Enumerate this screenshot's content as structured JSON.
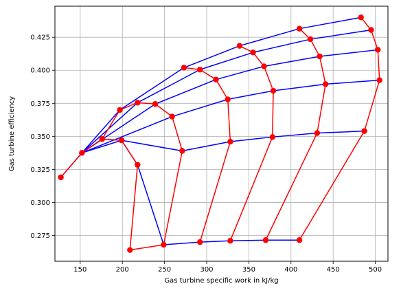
{
  "chart_data": {
    "type": "line",
    "xlabel": "Gas turbine specific work in kJ/kg",
    "ylabel": "Gas turbine efficiency",
    "xlim": [
      120,
      515
    ],
    "ylim": [
      0.2555,
      0.4485
    ],
    "x_ticks": [
      150,
      200,
      250,
      300,
      350,
      400,
      450,
      500
    ],
    "y_ticks": [
      0.275,
      0.3,
      0.325,
      0.35,
      0.375,
      0.4,
      0.425
    ],
    "grid": true,
    "colors": {
      "blue_lines": "#0000ff",
      "red_lines": "#ff0000",
      "markers": "#ff0000",
      "grid": "#b0b0b0"
    },
    "blue_series": [
      {
        "values": [
          [
            152,
            0.3375
          ],
          [
            197,
            0.37
          ],
          [
            273,
            0.402
          ],
          [
            339,
            0.4185
          ],
          [
            410,
            0.4315
          ],
          [
            483,
            0.44
          ]
        ]
      },
      {
        "values": [
          [
            152,
            0.3375
          ],
          [
            218,
            0.3755
          ],
          [
            292,
            0.4005
          ],
          [
            355,
            0.4135
          ],
          [
            423,
            0.4235
          ],
          [
            495,
            0.4305
          ]
        ]
      },
      {
        "values": [
          [
            152,
            0.3375
          ],
          [
            239,
            0.3745
          ],
          [
            311,
            0.393
          ],
          [
            368,
            0.403
          ],
          [
            434,
            0.4105
          ],
          [
            503,
            0.4155
          ]
        ]
      },
      {
        "values": [
          [
            152,
            0.3375
          ],
          [
            259,
            0.365
          ],
          [
            325,
            0.378
          ],
          [
            379,
            0.3845
          ],
          [
            441,
            0.3895
          ],
          [
            505,
            0.3925
          ]
        ]
      },
      {
        "values": [
          [
            152,
            0.3375
          ],
          [
            199,
            0.347
          ],
          [
            271,
            0.339
          ],
          [
            328,
            0.346
          ],
          [
            378,
            0.3495
          ],
          [
            431,
            0.3525
          ],
          [
            487,
            0.354
          ]
        ]
      },
      {
        "values": [
          [
            127,
            0.319
          ],
          [
            152,
            0.3375
          ],
          [
            176,
            0.348
          ],
          [
            199,
            0.347
          ],
          [
            218,
            0.3285
          ],
          [
            249,
            0.268
          ],
          [
            292,
            0.27
          ],
          [
            328,
            0.271
          ],
          [
            370,
            0.2715
          ],
          [
            410,
            0.2715
          ]
        ]
      }
    ],
    "red_series": [
      {
        "values": [
          [
            127,
            0.319
          ],
          [
            152,
            0.3375
          ],
          [
            176,
            0.348
          ],
          [
            197,
            0.37
          ],
          [
            218,
            0.3755
          ],
          [
            239,
            0.3745
          ],
          [
            259,
            0.365
          ],
          [
            271,
            0.339
          ],
          [
            249,
            0.268
          ]
        ]
      },
      {
        "values": [
          [
            273,
            0.402
          ],
          [
            292,
            0.4005
          ],
          [
            311,
            0.393
          ],
          [
            325,
            0.378
          ],
          [
            328,
            0.346
          ],
          [
            292,
            0.27
          ]
        ]
      },
      {
        "values": [
          [
            339,
            0.4185
          ],
          [
            355,
            0.4135
          ],
          [
            368,
            0.403
          ],
          [
            379,
            0.3845
          ],
          [
            378,
            0.3495
          ],
          [
            328,
            0.271
          ]
        ]
      },
      {
        "values": [
          [
            410,
            0.4315
          ],
          [
            423,
            0.4235
          ],
          [
            434,
            0.4105
          ],
          [
            441,
            0.3895
          ],
          [
            431,
            0.3525
          ],
          [
            370,
            0.2715
          ]
        ]
      },
      {
        "values": [
          [
            483,
            0.44
          ],
          [
            495,
            0.4305
          ],
          [
            503,
            0.4155
          ],
          [
            505,
            0.3925
          ],
          [
            487,
            0.354
          ],
          [
            410,
            0.2715
          ]
        ]
      },
      {
        "values": [
          [
            176,
            0.348
          ],
          [
            199,
            0.347
          ],
          [
            218,
            0.3285
          ],
          [
            209,
            0.264
          ],
          [
            249,
            0.268
          ]
        ]
      }
    ],
    "markers": [
      [
        127,
        0.319
      ],
      [
        152,
        0.3375
      ],
      [
        176,
        0.348
      ],
      [
        199,
        0.347
      ],
      [
        218,
        0.3285
      ],
      [
        209,
        0.264
      ],
      [
        197,
        0.37
      ],
      [
        218,
        0.3755
      ],
      [
        239,
        0.3745
      ],
      [
        259,
        0.365
      ],
      [
        271,
        0.339
      ],
      [
        249,
        0.268
      ],
      [
        273,
        0.402
      ],
      [
        292,
        0.4005
      ],
      [
        311,
        0.393
      ],
      [
        325,
        0.378
      ],
      [
        328,
        0.346
      ],
      [
        292,
        0.27
      ],
      [
        339,
        0.4185
      ],
      [
        355,
        0.4135
      ],
      [
        368,
        0.403
      ],
      [
        379,
        0.3845
      ],
      [
        378,
        0.3495
      ],
      [
        328,
        0.271
      ],
      [
        410,
        0.4315
      ],
      [
        423,
        0.4235
      ],
      [
        434,
        0.4105
      ],
      [
        441,
        0.3895
      ],
      [
        431,
        0.3525
      ],
      [
        370,
        0.2715
      ],
      [
        483,
        0.44
      ],
      [
        495,
        0.4305
      ],
      [
        503,
        0.4155
      ],
      [
        505,
        0.3925
      ],
      [
        487,
        0.354
      ],
      [
        410,
        0.2715
      ]
    ]
  }
}
